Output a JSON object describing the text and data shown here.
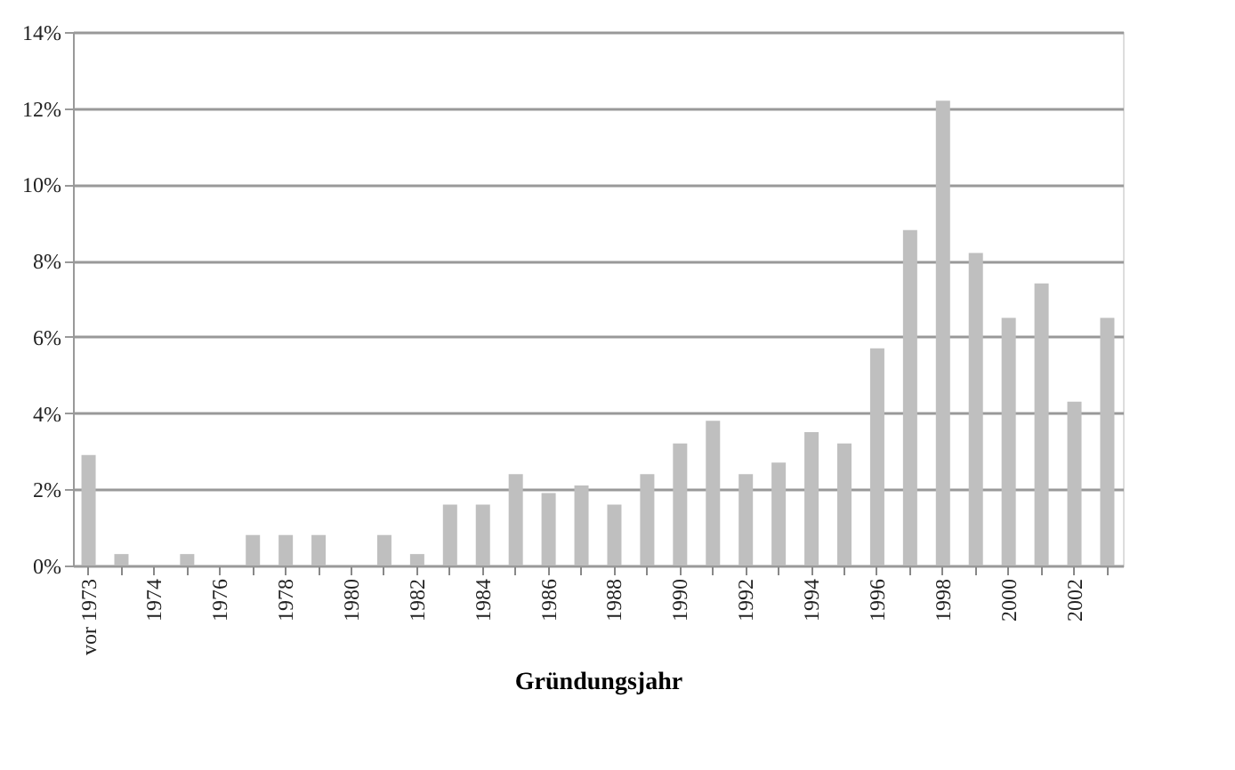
{
  "chart_data": {
    "type": "bar",
    "xlabel": "Gründungsjahr",
    "categories": [
      "vor 1973",
      null,
      "1974",
      null,
      "1976",
      null,
      "1978",
      null,
      "1980",
      null,
      "1982",
      null,
      "1984",
      null,
      "1986",
      null,
      "1988",
      null,
      "1990",
      null,
      "1992",
      null,
      "1994",
      null,
      "1996",
      null,
      "1998",
      null,
      "2000",
      null,
      "2002",
      null
    ],
    "values": [
      2.9,
      0.3,
      0,
      0.3,
      0,
      0.8,
      0.8,
      0.8,
      0,
      0.8,
      0.3,
      1.6,
      1.6,
      2.4,
      1.9,
      2.1,
      1.6,
      2.4,
      3.2,
      3.8,
      2.4,
      2.7,
      3.5,
      3.2,
      5.7,
      8.8,
      12.2,
      8.2,
      6.5,
      7.4,
      4.3,
      6.5
    ],
    "color": "#bfbfbf",
    "ylim": [
      0,
      14
    ],
    "yticks": [
      {
        "value": 0,
        "label": "0%"
      },
      {
        "value": 2,
        "label": "2%"
      },
      {
        "value": 4,
        "label": "4%"
      },
      {
        "value": 6,
        "label": "6%"
      },
      {
        "value": 8,
        "label": "8%"
      },
      {
        "value": 10,
        "label": "10%"
      },
      {
        "value": 12,
        "label": "12%"
      },
      {
        "value": 14,
        "label": "14%"
      }
    ],
    "grid": "y"
  }
}
